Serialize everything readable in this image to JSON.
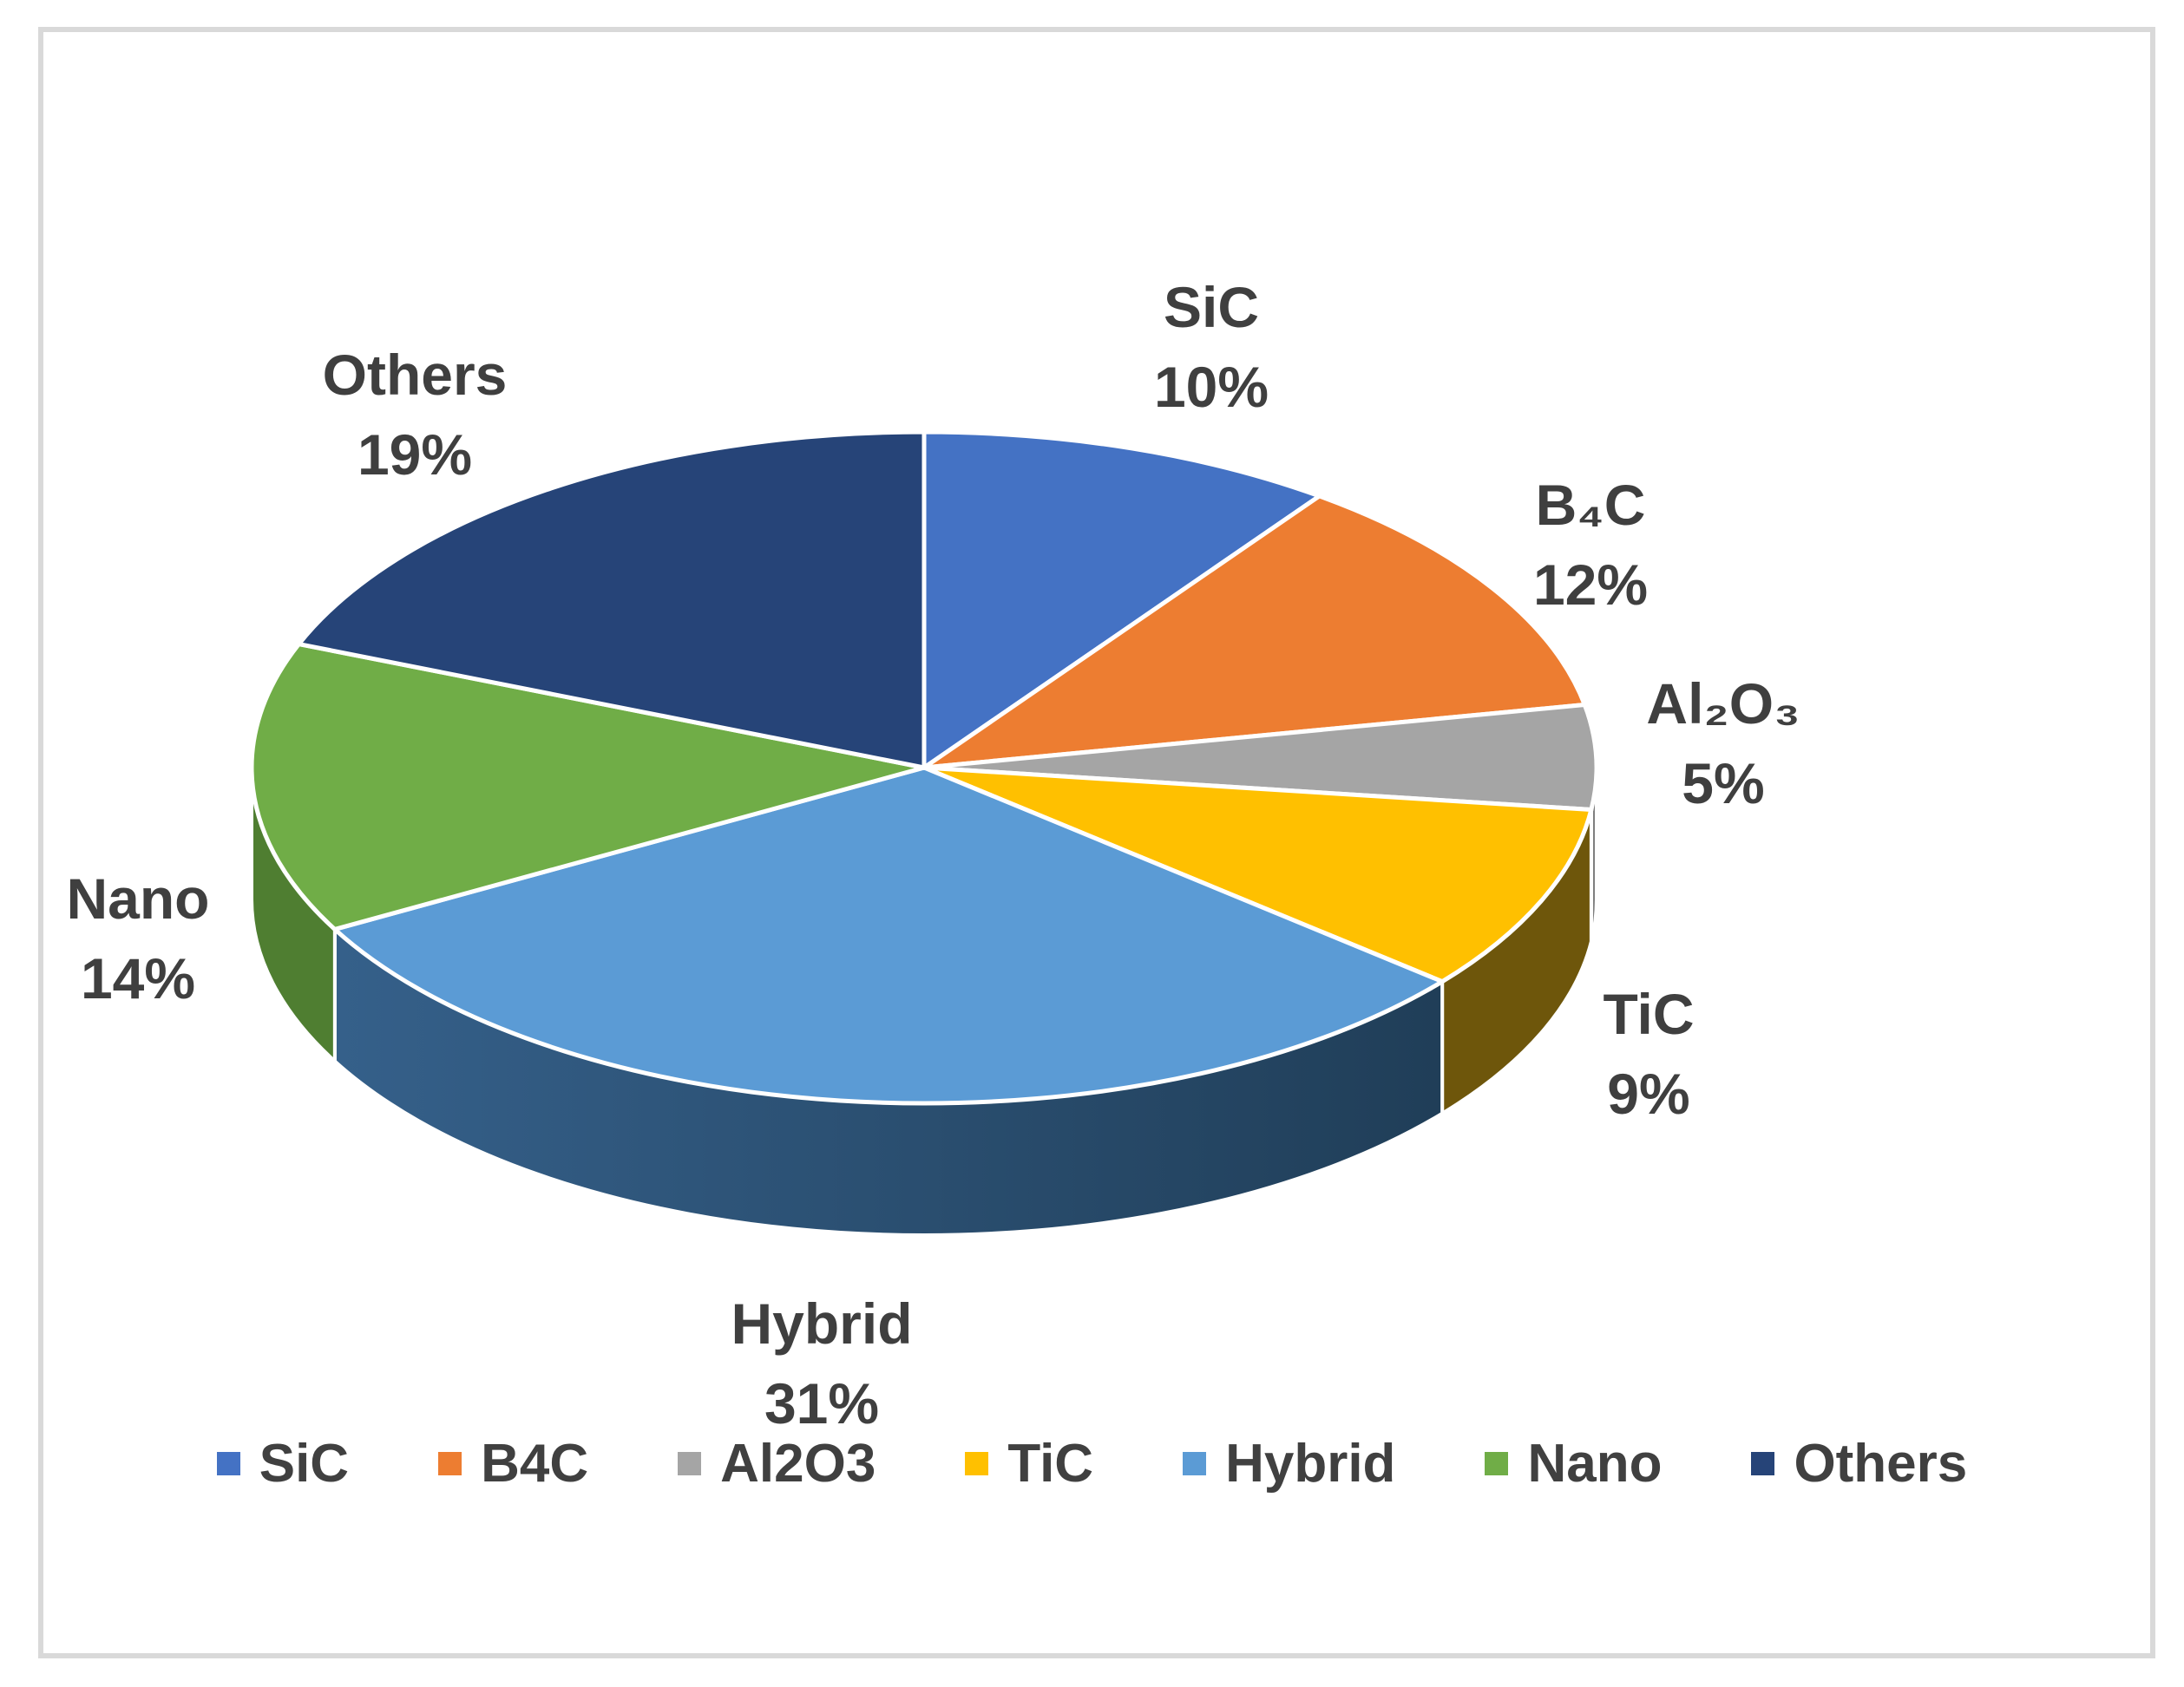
{
  "chart_data": {
    "type": "pie",
    "title": "",
    "effect": "3d",
    "direction": "clockwise",
    "start_angle": "12-oclock",
    "legend_position": "bottom",
    "text_color": "#3f3f3f",
    "frame_border_color": "#d9d9d9",
    "categories": [
      "SiC",
      "B4C",
      "Al2O3",
      "TiC",
      "Hybrid",
      "Nano",
      "Others"
    ],
    "values": [
      10,
      12,
      5,
      9,
      31,
      14,
      19
    ],
    "slices": [
      {
        "name": "SiC",
        "callout_label": "SiC",
        "pct_label": "10%",
        "legend_label": "SiC",
        "value": 10,
        "color": "#4472C4",
        "side_color": null
      },
      {
        "name": "B4C",
        "callout_label": "B₄C",
        "pct_label": "12%",
        "legend_label": "B4C",
        "value": 12,
        "color": "#ED7D31",
        "side_color": null
      },
      {
        "name": "Al2O3",
        "callout_label": "Al₂O₃",
        "pct_label": "5%",
        "legend_label": "Al2O3",
        "value": 5,
        "color": "#A5A5A5",
        "side_color": "#7F7F7F"
      },
      {
        "name": "TiC",
        "callout_label": "TiC",
        "pct_label": "9%",
        "legend_label": "TiC",
        "value": 9,
        "color": "#FFC000",
        "side_color": "#6E560B"
      },
      {
        "name": "Hybrid",
        "callout_label": "Hybrid",
        "pct_label": "31%",
        "legend_label": "Hybrid",
        "value": 31,
        "color": "#5B9BD5",
        "side_color": "#2D5273",
        "side_gradient": [
          "#35608A",
          "#203E58"
        ]
      },
      {
        "name": "Nano",
        "callout_label": "Nano",
        "pct_label": "14%",
        "legend_label": "Nano",
        "value": 14,
        "color": "#70AD47",
        "side_color": "#4F7E31"
      },
      {
        "name": "Others",
        "callout_label": "Others",
        "pct_label": "19%",
        "legend_label": "Others",
        "value": 19,
        "color": "#264478",
        "side_color": null
      }
    ]
  }
}
